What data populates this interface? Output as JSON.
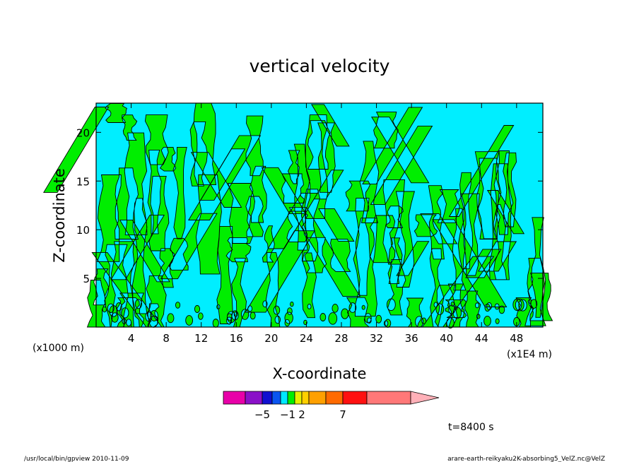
{
  "chart_data": {
    "type": "heatmap",
    "title": "vertical velocity",
    "xlabel": "X-coordinate",
    "ylabel": "Z-coordinate",
    "x_unit_label": "(x1000 m)",
    "x_scale_note": "(x1E4 m)",
    "x_ticks": [
      4,
      8,
      12,
      16,
      20,
      24,
      28,
      32,
      36,
      40,
      44,
      48
    ],
    "y_ticks": [
      5,
      10,
      15,
      20
    ],
    "xlim": [
      0,
      51
    ],
    "ylim": [
      0,
      23
    ],
    "time_label": "t=8400 s",
    "colorbar": {
      "colors": [
        "#e800a8",
        "#8a10c8",
        "#1010d0",
        "#0a55f0",
        "#00e8ff",
        "#00ee00",
        "#e8f000",
        "#ffd000",
        "#ffa000",
        "#ff6a00",
        "#ff1010",
        "#ff7878",
        "#ffb0b8"
      ],
      "labels": [
        {
          "index": 1,
          "text": "−5"
        },
        {
          "index": 4,
          "text": "−1"
        },
        {
          "index": 6,
          "text": "2"
        },
        {
          "index": 9,
          "text": "7"
        }
      ]
    },
    "field_colors": {
      "low": "#00eeff",
      "high": "#00ee00",
      "contour": "#000000"
    }
  },
  "footer": {
    "left": "/usr/local/bin/gpview   2010-11-09",
    "right": "arare-earth-reikyaku2K-absorbing5_VelZ.nc@VelZ"
  }
}
